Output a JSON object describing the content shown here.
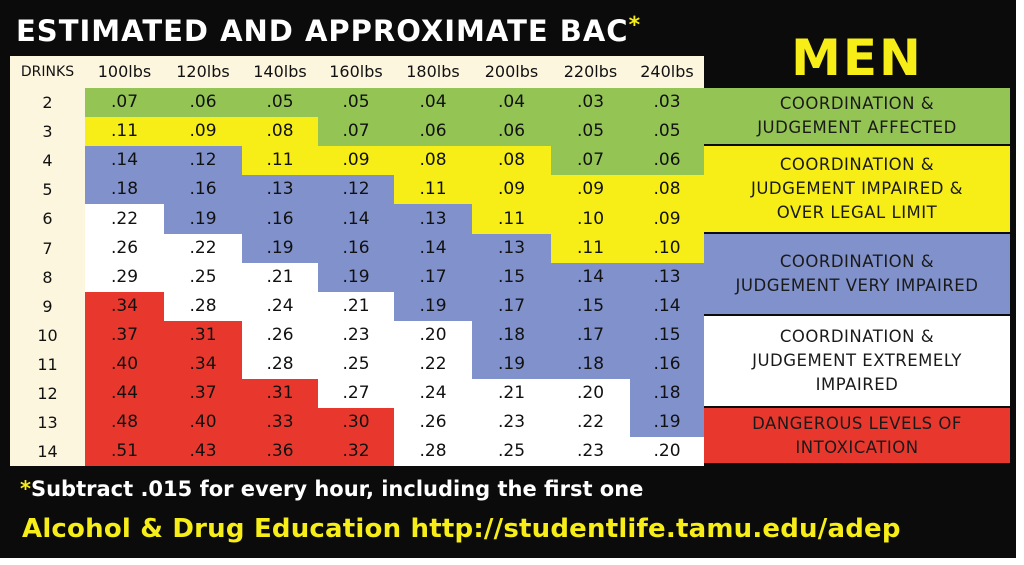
{
  "title": "ESTIMATED AND APPROXIMATE BAC",
  "title_star": "*",
  "gender_label": "MEN",
  "header": {
    "drinks_label": "DRINKS",
    "weights": [
      "100lbs",
      "120lbs",
      "140lbs",
      "160lbs",
      "180lbs",
      "200lbs",
      "220lbs",
      "240lbs"
    ]
  },
  "colors": {
    "green": "#94c454",
    "yellow": "#f7ee17",
    "blue": "#8091cb",
    "white": "#ffffff",
    "red": "#e8382e"
  },
  "rows": [
    {
      "drinks": "2",
      "values": [
        ".07",
        ".06",
        ".05",
        ".05",
        ".04",
        ".04",
        ".03",
        ".03"
      ],
      "levels": [
        "green",
        "green",
        "green",
        "green",
        "green",
        "green",
        "green",
        "green"
      ]
    },
    {
      "drinks": "3",
      "values": [
        ".11",
        ".09",
        ".08",
        ".07",
        ".06",
        ".06",
        ".05",
        ".05"
      ],
      "levels": [
        "yellow",
        "yellow",
        "yellow",
        "green",
        "green",
        "green",
        "green",
        "green"
      ]
    },
    {
      "drinks": "4",
      "values": [
        ".14",
        ".12",
        ".11",
        ".09",
        ".08",
        ".08",
        ".07",
        ".06"
      ],
      "levels": [
        "blue",
        "blue",
        "yellow",
        "yellow",
        "yellow",
        "yellow",
        "green",
        "green"
      ]
    },
    {
      "drinks": "5",
      "values": [
        ".18",
        ".16",
        ".13",
        ".12",
        ".11",
        ".09",
        ".09",
        ".08"
      ],
      "levels": [
        "blue",
        "blue",
        "blue",
        "blue",
        "yellow",
        "yellow",
        "yellow",
        "yellow"
      ]
    },
    {
      "drinks": "6",
      "values": [
        ".22",
        ".19",
        ".16",
        ".14",
        ".13",
        ".11",
        ".10",
        ".09"
      ],
      "levels": [
        "white",
        "blue",
        "blue",
        "blue",
        "blue",
        "yellow",
        "yellow",
        "yellow"
      ]
    },
    {
      "drinks": "7",
      "values": [
        ".26",
        ".22",
        ".19",
        ".16",
        ".14",
        ".13",
        ".11",
        ".10"
      ],
      "levels": [
        "white",
        "white",
        "blue",
        "blue",
        "blue",
        "blue",
        "yellow",
        "yellow"
      ]
    },
    {
      "drinks": "8",
      "values": [
        ".29",
        ".25",
        ".21",
        ".19",
        ".17",
        ".15",
        ".14",
        ".13"
      ],
      "levels": [
        "white",
        "white",
        "white",
        "blue",
        "blue",
        "blue",
        "blue",
        "blue"
      ]
    },
    {
      "drinks": "9",
      "values": [
        ".34",
        ".28",
        ".24",
        ".21",
        ".19",
        ".17",
        ".15",
        ".14"
      ],
      "levels": [
        "red",
        "white",
        "white",
        "white",
        "blue",
        "blue",
        "blue",
        "blue"
      ]
    },
    {
      "drinks": "10",
      "values": [
        ".37",
        ".31",
        ".26",
        ".23",
        ".20",
        ".18",
        ".17",
        ".15"
      ],
      "levels": [
        "red",
        "red",
        "white",
        "white",
        "white",
        "blue",
        "blue",
        "blue"
      ]
    },
    {
      "drinks": "11",
      "values": [
        ".40",
        ".34",
        ".28",
        ".25",
        ".22",
        ".19",
        ".18",
        ".16"
      ],
      "levels": [
        "red",
        "red",
        "white",
        "white",
        "white",
        "blue",
        "blue",
        "blue"
      ]
    },
    {
      "drinks": "12",
      "values": [
        ".44",
        ".37",
        ".31",
        ".27",
        ".24",
        ".21",
        ".20",
        ".18"
      ],
      "levels": [
        "red",
        "red",
        "red",
        "white",
        "white",
        "white",
        "white",
        "blue"
      ]
    },
    {
      "drinks": "13",
      "values": [
        ".48",
        ".40",
        ".33",
        ".30",
        ".26",
        ".23",
        ".22",
        ".19"
      ],
      "levels": [
        "red",
        "red",
        "red",
        "red",
        "white",
        "white",
        "white",
        "blue"
      ]
    },
    {
      "drinks": "14",
      "values": [
        ".51",
        ".43",
        ".36",
        ".32",
        ".28",
        ".25",
        ".23",
        ".20"
      ],
      "levels": [
        "red",
        "red",
        "red",
        "red",
        "white",
        "white",
        "white",
        "white"
      ]
    }
  ],
  "legend": [
    {
      "level": "green",
      "lines": [
        "COORDINATION &",
        "JUDGEMENT AFFECTED"
      ]
    },
    {
      "level": "yellow",
      "lines": [
        "COORDINATION &",
        "JUDGEMENT IMPAIRED &",
        "OVER LEGAL LIMIT"
      ]
    },
    {
      "level": "blue",
      "lines": [
        "COORDINATION &",
        "JUDGEMENT VERY IMPAIRED"
      ]
    },
    {
      "level": "white",
      "lines": [
        "COORDINATION &",
        "JUDGEMENT EXTREMELY",
        "IMPAIRED"
      ]
    },
    {
      "level": "red",
      "lines": [
        "DANGEROUS LEVELS OF",
        "INTOXICATION"
      ]
    }
  ],
  "note_star": "*",
  "note": "Subtract .015 for every hour, including the first one",
  "footer": "Alcohol & Drug Education http://studentlife.tamu.edu/adep"
}
